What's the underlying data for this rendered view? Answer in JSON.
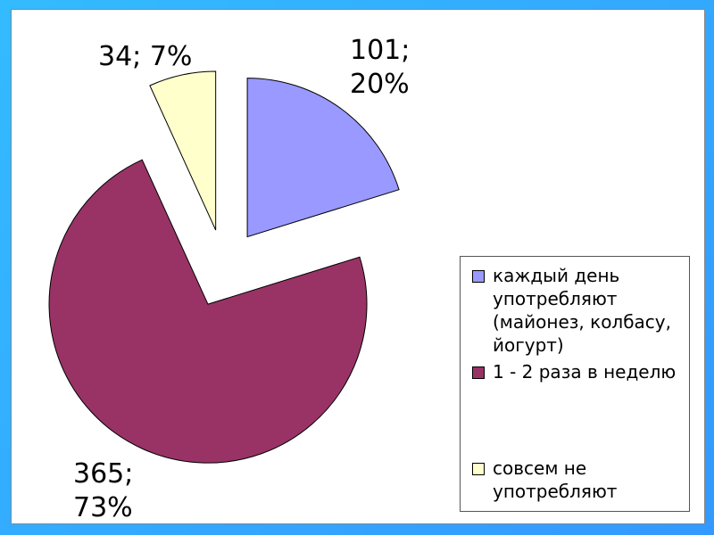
{
  "chart_data": {
    "type": "pie",
    "categories": [
      "каждый день употребляют (майонез, колбасу, йогурт)",
      "1 - 2 раза в неделю",
      "совсем не употребляют"
    ],
    "values": [
      101,
      365,
      34
    ],
    "value_labels": [
      "101; 20%",
      "365; 73%",
      "34; 7%"
    ],
    "colors": [
      "#9999ff",
      "#993366",
      "#ffffcc"
    ],
    "legend": "right"
  }
}
